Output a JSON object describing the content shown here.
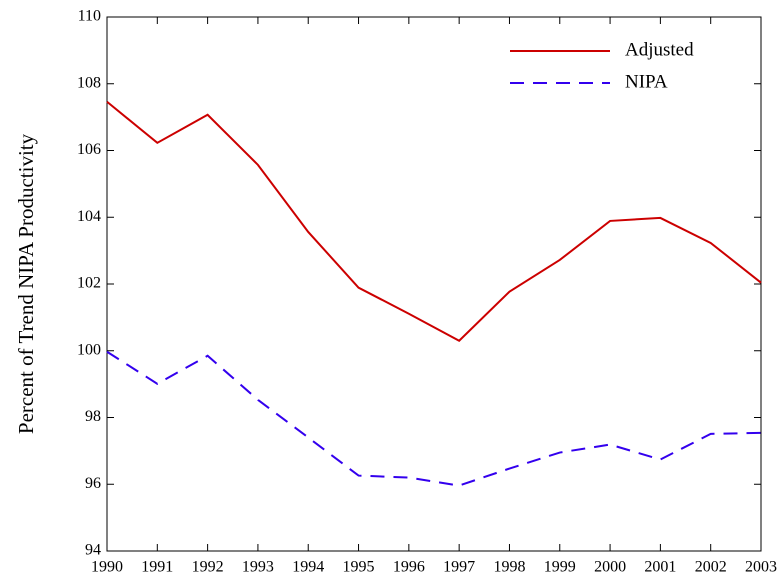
{
  "chart_data": {
    "type": "line",
    "ylabel": "Percent of Trend NIPA Productivity",
    "x": [
      1990,
      1991,
      1992,
      1993,
      1994,
      1995,
      1996,
      1997,
      1998,
      1999,
      2000,
      2001,
      2002,
      2003
    ],
    "series": [
      {
        "name": "Adjusted",
        "color": "#cc0000",
        "linestyle": "solid",
        "values": [
          107.46,
          106.23,
          107.07,
          105.57,
          103.56,
          101.89,
          101.11,
          100.3,
          101.77,
          102.72,
          103.89,
          103.98,
          103.23,
          102.04
        ]
      },
      {
        "name": "NIPA",
        "color": "#3300ee",
        "linestyle": "dashed",
        "values": [
          99.97,
          99.01,
          99.85,
          98.53,
          97.4,
          96.26,
          96.2,
          95.96,
          96.47,
          96.95,
          97.19,
          96.74,
          97.51,
          97.54
        ]
      }
    ],
    "xlim": [
      1990,
      2003
    ],
    "xticks": [
      1990,
      1991,
      1992,
      1993,
      1994,
      1995,
      1996,
      1997,
      1998,
      1999,
      2000,
      2001,
      2002,
      2003
    ],
    "ylim": [
      94,
      110
    ],
    "yticks": [
      94,
      96,
      98,
      100,
      102,
      104,
      106,
      108,
      110
    ],
    "legend": "upper right"
  }
}
